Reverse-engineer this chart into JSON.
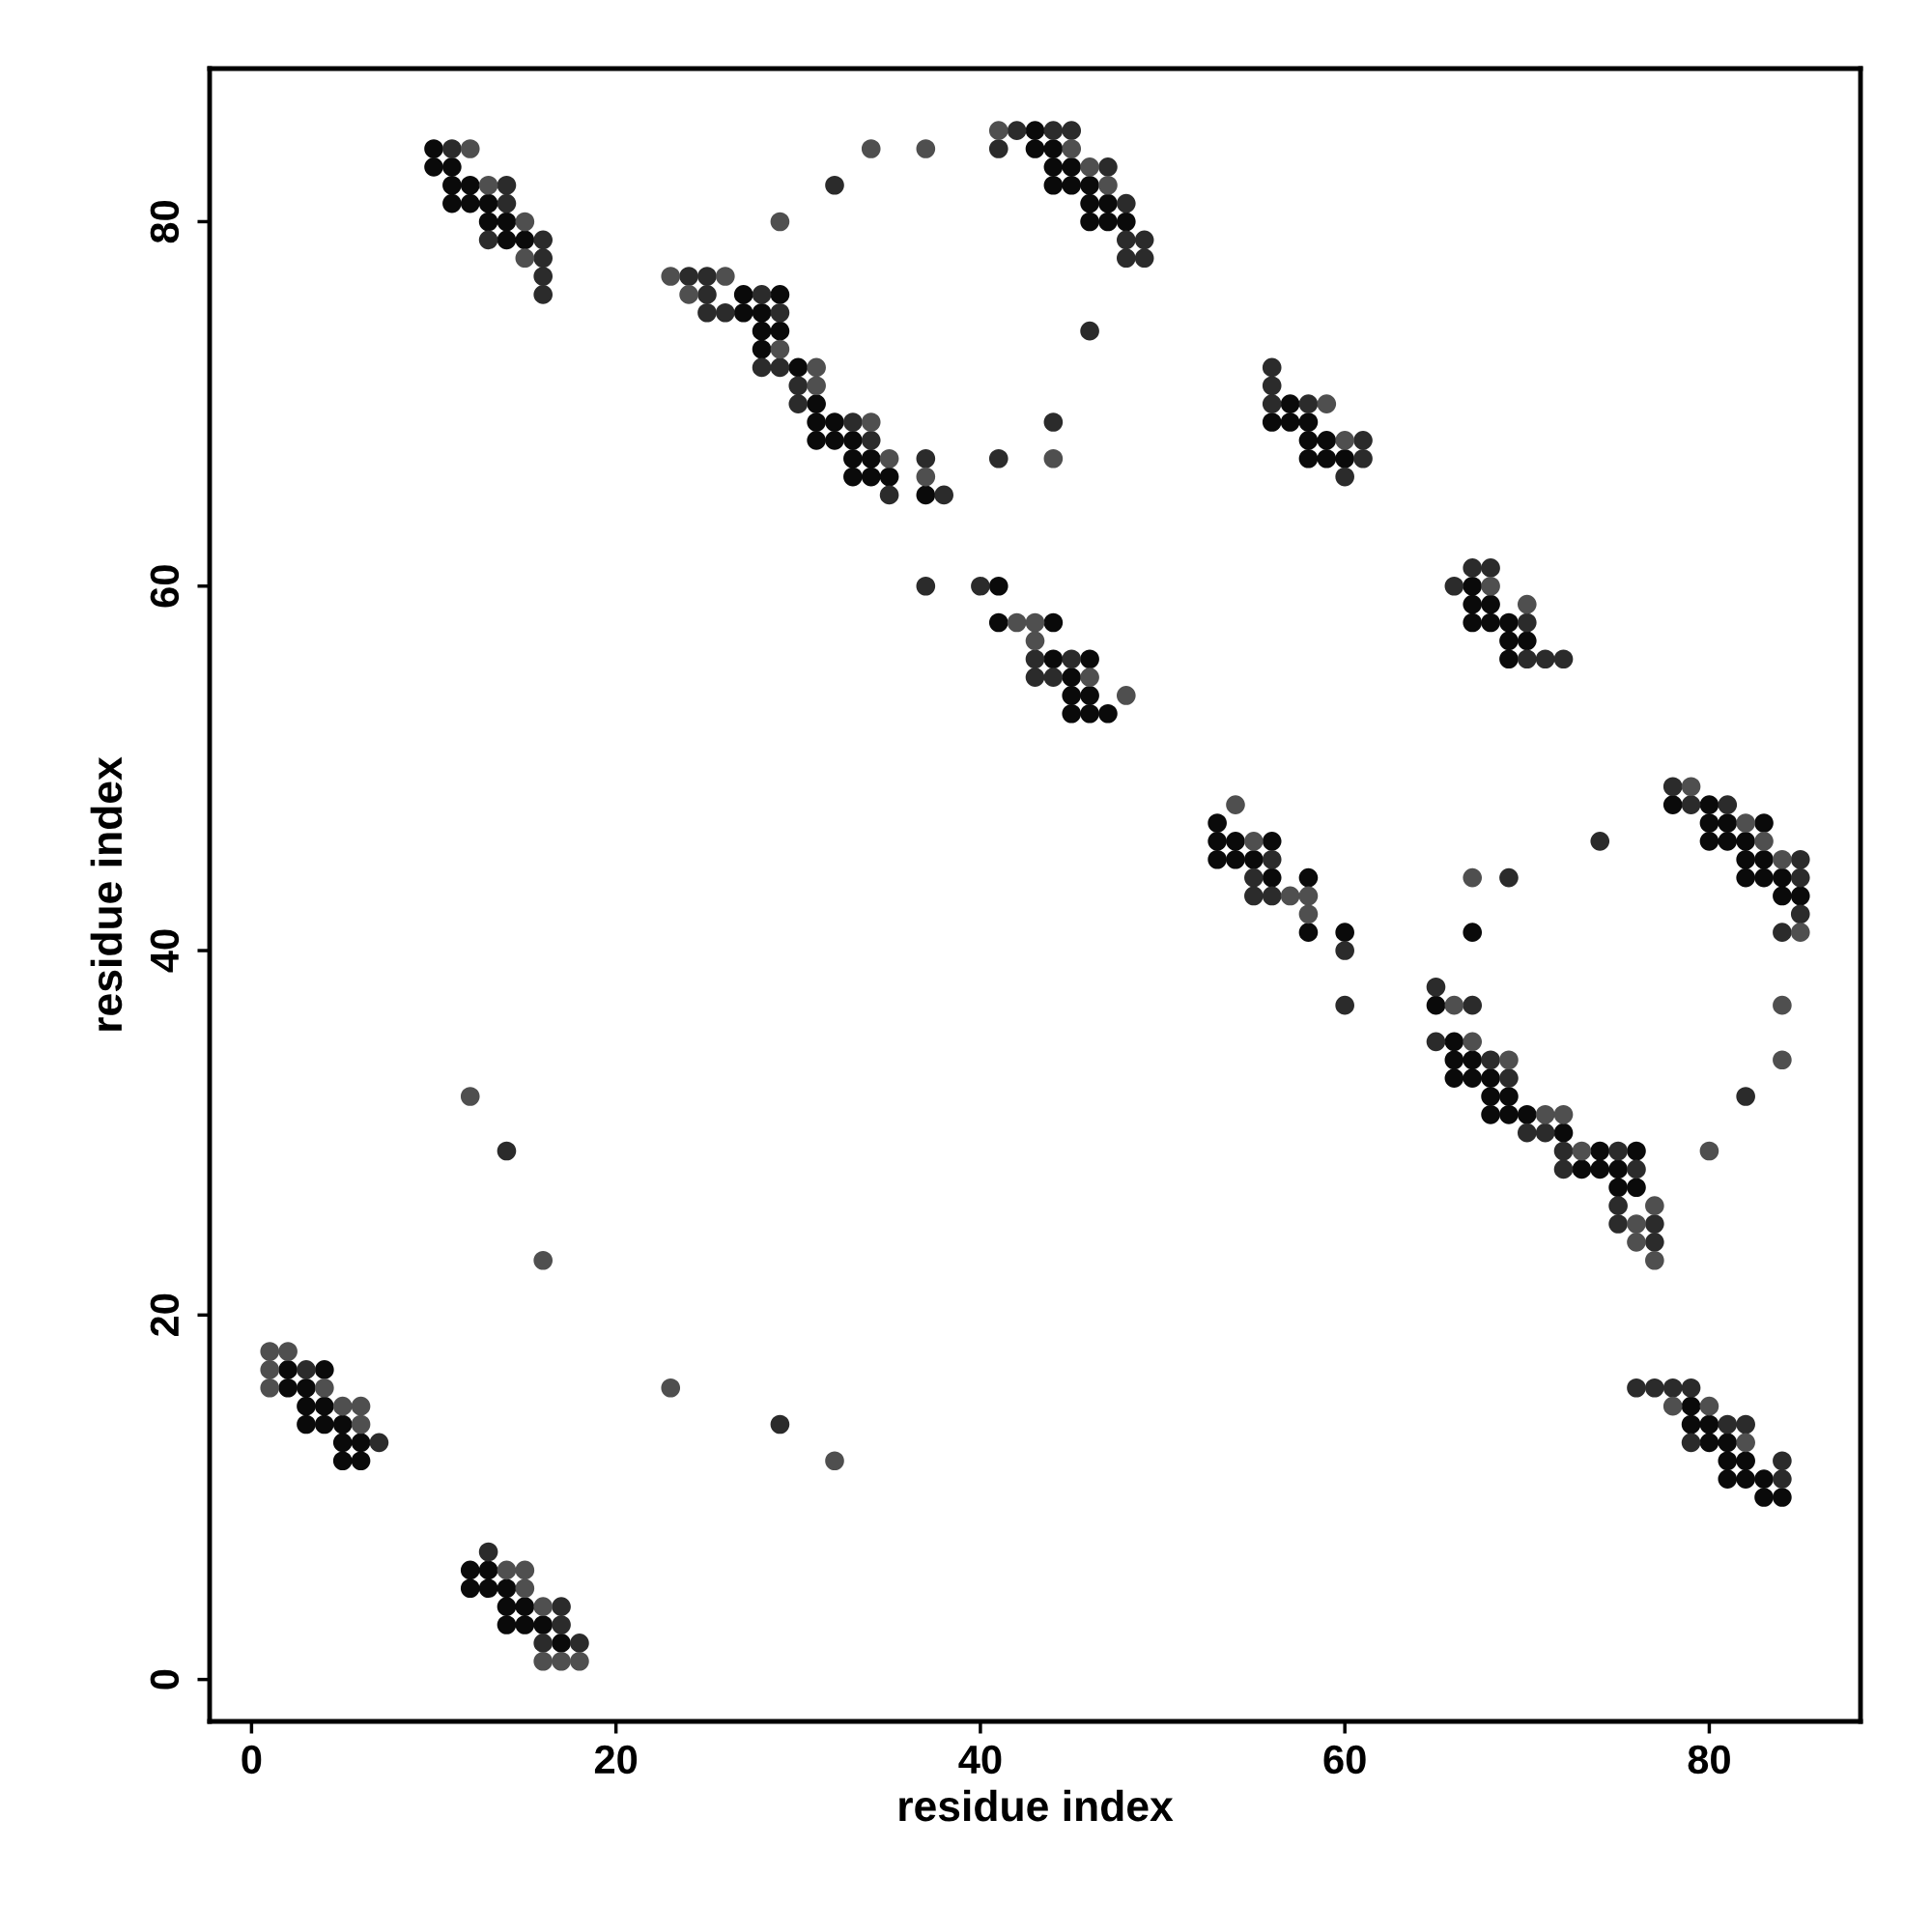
{
  "chart_data": {
    "type": "scatter",
    "xlabel": "residue index",
    "ylabel": "residue index",
    "xlim": [
      -2.3,
      88.3
    ],
    "ylim": [
      -2.3,
      88.4
    ],
    "xticks": [
      0,
      20,
      40,
      60,
      80
    ],
    "yticks": [
      0,
      20,
      40,
      60,
      80
    ],
    "grid": false,
    "legend": false,
    "marker": "circle",
    "series": [
      {
        "color": "#0a0a0a",
        "x": [
          2,
          4,
          2,
          3,
          3,
          4,
          3,
          4,
          5,
          5,
          6,
          5,
          6,
          12,
          13,
          12,
          13,
          14,
          14,
          15,
          14,
          15,
          16,
          17,
          10,
          10,
          11,
          11,
          12,
          11,
          12,
          13,
          13,
          14,
          14,
          15,
          27,
          29,
          27,
          28,
          28,
          29,
          28,
          30,
          31,
          31,
          32,
          31,
          32,
          33,
          33,
          34,
          33,
          34,
          35,
          37,
          41,
          41,
          44,
          44,
          46,
          45,
          45,
          46,
          45,
          46,
          47,
          43,
          43,
          44,
          44,
          45,
          44,
          45,
          46,
          46,
          47,
          46,
          47,
          48,
          57,
          56,
          57,
          58,
          58,
          59,
          58,
          59,
          60,
          67,
          67,
          68,
          67,
          68,
          69,
          69,
          70,
          69,
          53,
          53,
          54,
          56,
          53,
          54,
          55,
          56,
          58,
          58,
          60,
          67,
          65,
          66,
          66,
          67,
          66,
          67,
          68,
          68,
          69,
          68,
          69,
          70,
          72,
          74,
          76,
          73,
          74,
          75,
          75,
          76,
          78,
          80,
          80,
          81,
          83,
          80,
          81,
          82,
          82,
          83,
          82,
          83,
          84,
          84,
          85,
          79,
          79,
          80,
          80,
          81,
          81,
          82,
          81,
          82,
          83,
          83,
          84
        ],
        "values": [
          17,
          17,
          16,
          16,
          15,
          15,
          14,
          14,
          14,
          13,
          13,
          12,
          12,
          6,
          6,
          5,
          5,
          5,
          4,
          4,
          3,
          3,
          3,
          2,
          84,
          83,
          83,
          82,
          82,
          81,
          81,
          81,
          80,
          80,
          79,
          79,
          76,
          76,
          75,
          75,
          74,
          74,
          73,
          72,
          70,
          69,
          69,
          68,
          68,
          68,
          67,
          67,
          66,
          66,
          66,
          65,
          60,
          58,
          58,
          56,
          56,
          55,
          54,
          54,
          53,
          53,
          53,
          85,
          84,
          84,
          83,
          83,
          82,
          82,
          82,
          81,
          81,
          80,
          80,
          80,
          70,
          69,
          69,
          69,
          68,
          68,
          67,
          67,
          67,
          60,
          59,
          59,
          58,
          58,
          58,
          57,
          57,
          56,
          47,
          46,
          46,
          46,
          45,
          45,
          45,
          44,
          44,
          41,
          41,
          41,
          37,
          35,
          34,
          34,
          33,
          33,
          33,
          32,
          32,
          31,
          31,
          31,
          30,
          29,
          29,
          28,
          28,
          28,
          27,
          27,
          48,
          48,
          47,
          47,
          47,
          46,
          46,
          46,
          45,
          45,
          44,
          44,
          44,
          43,
          43,
          15,
          14,
          14,
          13,
          13,
          12,
          12,
          11,
          11,
          11,
          10,
          10
        ]
      },
      {
        "color": "#2b2b2b",
        "x": [
          3,
          7,
          13,
          17,
          17,
          16,
          18,
          14,
          29,
          32,
          11,
          14,
          14,
          13,
          16,
          16,
          16,
          16,
          24,
          25,
          25,
          28,
          25,
          26,
          29,
          28,
          29,
          30,
          30,
          33,
          34,
          37,
          35,
          38,
          41,
          44,
          46,
          37,
          40,
          43,
          45,
          43,
          44,
          42,
          44,
          45,
          41,
          47,
          48,
          48,
          49,
          48,
          49,
          56,
          56,
          56,
          58,
          61,
          61,
          60,
          67,
          68,
          66,
          70,
          70,
          71,
          72,
          56,
          55,
          55,
          56,
          60,
          60,
          69,
          74,
          84,
          82,
          65,
          67,
          65,
          68,
          69,
          70,
          71,
          72,
          75,
          72,
          76,
          75,
          75,
          77,
          77,
          78,
          79,
          81,
          85,
          85,
          85,
          76,
          77,
          78,
          79,
          81,
          82,
          79,
          84,
          84
        ],
        "values": [
          17,
          13,
          7,
          4,
          3,
          2,
          2,
          29,
          14,
          82,
          84,
          82,
          81,
          79,
          79,
          78,
          77,
          76,
          77,
          77,
          76,
          76,
          75,
          75,
          75,
          72,
          72,
          71,
          70,
          69,
          68,
          67,
          65,
          65,
          67,
          69,
          74,
          60,
          60,
          56,
          56,
          55,
          55,
          85,
          85,
          85,
          84,
          83,
          81,
          79,
          79,
          78,
          78,
          72,
          71,
          70,
          70,
          68,
          67,
          66,
          61,
          61,
          60,
          58,
          56,
          56,
          56,
          45,
          44,
          43,
          43,
          40,
          37,
          44,
          46,
          41,
          32,
          38,
          37,
          35,
          34,
          33,
          30,
          30,
          29,
          29,
          28,
          28,
          26,
          25,
          25,
          24,
          49,
          48,
          48,
          45,
          44,
          42,
          16,
          16,
          16,
          16,
          14,
          14,
          13,
          12,
          11
        ]
      },
      {
        "color": "#4f4f4f",
        "x": [
          1,
          2,
          1,
          1,
          4,
          5,
          6,
          6,
          14,
          15,
          15,
          16,
          16,
          17,
          18,
          12,
          16,
          23,
          32,
          29,
          34,
          37,
          12,
          13,
          15,
          15,
          23,
          26,
          24,
          29,
          31,
          31,
          34,
          35,
          37,
          44,
          42,
          43,
          43,
          46,
          48,
          41,
          45,
          46,
          47,
          59,
          60,
          68,
          70,
          54,
          55,
          57,
          58,
          58,
          67,
          85,
          84,
          84,
          80,
          66,
          67,
          69,
          71,
          72,
          73,
          77,
          76,
          76,
          77,
          79,
          82,
          83,
          84,
          78,
          80,
          82
        ],
        "values": [
          18,
          18,
          17,
          16,
          16,
          15,
          15,
          14,
          6,
          6,
          5,
          4,
          1,
          1,
          1,
          32,
          23,
          16,
          12,
          80,
          84,
          84,
          84,
          82,
          80,
          78,
          77,
          77,
          76,
          73,
          72,
          71,
          69,
          67,
          66,
          67,
          58,
          58,
          57,
          55,
          54,
          85,
          84,
          83,
          82,
          70,
          68,
          60,
          59,
          48,
          46,
          43,
          43,
          42,
          44,
          41,
          37,
          34,
          29,
          37,
          35,
          34,
          31,
          31,
          29,
          26,
          25,
          24,
          23,
          49,
          47,
          46,
          45,
          15,
          15,
          13
        ]
      }
    ]
  }
}
